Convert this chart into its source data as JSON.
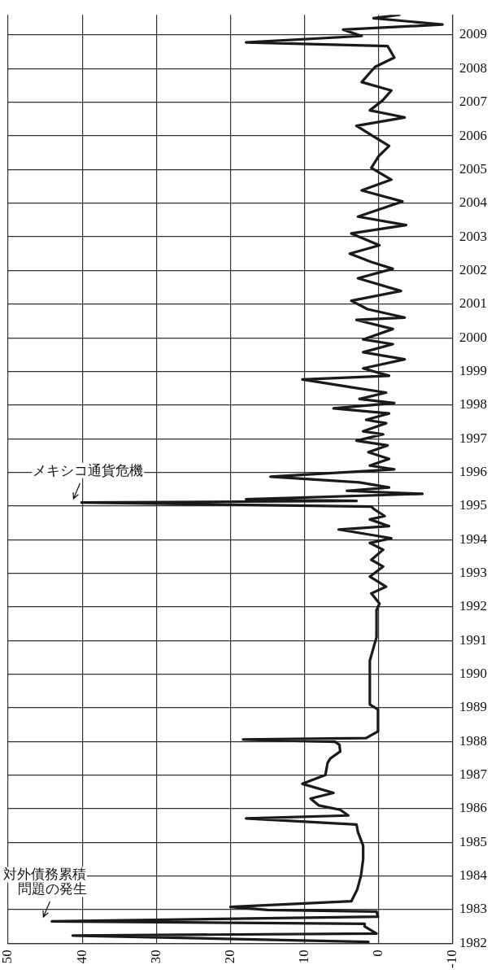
{
  "chart_data": {
    "type": "line",
    "orientation": "horizontal",
    "color": "#1a1a1a",
    "grid": true,
    "x": [
      1982.04,
      1982.23,
      1982.29,
      1982.5,
      1982.58,
      1982.65,
      1982.79,
      1982.94,
      1982.99,
      1983.08,
      1983.25,
      1983.6,
      1984.0,
      1984.5,
      1984.9,
      1985.3,
      1985.53,
      1985.71,
      1985.8,
      1985.97,
      1986.1,
      1986.3,
      1986.47,
      1986.74,
      1987.0,
      1987.36,
      1987.5,
      1987.7,
      1987.9,
      1987.99,
      1988.06,
      1988.1,
      1988.3,
      1988.95,
      1989.1,
      1990.4,
      1991.1,
      1991.9,
      1992.1,
      1992.4,
      1992.6,
      1992.9,
      1993.2,
      1993.4,
      1993.7,
      1993.9,
      1994.04,
      1994.3,
      1994.4,
      1994.6,
      1994.7,
      1994.9,
      1994.98,
      1995.1,
      1995.15,
      1995.2,
      1995.36,
      1995.45,
      1995.55,
      1995.7,
      1995.87,
      1996.09,
      1996.2,
      1996.4,
      1996.6,
      1996.8,
      1996.94,
      1997.13,
      1997.22,
      1997.46,
      1997.56,
      1997.75,
      1997.9,
      1998.06,
      1998.18,
      1998.37,
      1998.52,
      1998.76,
      1998.87,
      1999.09,
      1999.36,
      1999.57,
      1999.81,
      1999.95,
      2000.26,
      2000.53,
      2000.6,
      2000.85,
      2001.1,
      2001.39,
      2001.77,
      2002.05,
      2002.25,
      2002.5,
      2002.75,
      2003.1,
      2003.35,
      2003.6,
      2004.05,
      2004.38,
      2004.7,
      2005.05,
      2005.4,
      2005.7,
      2006.05,
      2006.3,
      2006.55,
      2006.76,
      2007.05,
      2007.35,
      2007.6,
      2008.05,
      2008.33,
      2008.67,
      2008.78,
      2008.97,
      2009.16,
      2009.31,
      2009.5,
      2009.6
    ],
    "values": [
      1.4,
      41.3,
      0.3,
      1.9,
      1.9,
      44.1,
      0.1,
      0.3,
      15,
      20.0,
      3.7,
      2.9,
      2.4,
      2.1,
      2.1,
      2.8,
      3.0,
      17.9,
      4.1,
      5.2,
      8.1,
      9.2,
      6.1,
      10.3,
      7.2,
      6.9,
      6.5,
      5.2,
      5.3,
      5.9,
      18.3,
      1.7,
      0.1,
      0.1,
      1.2,
      1.2,
      0.3,
      0.3,
      -0.1,
      1.0,
      -1.0,
      1.2,
      -0.6,
      1.0,
      -0.6,
      1.2,
      -1.7,
      5.4,
      -1.4,
      1.2,
      -0.8,
      0.6,
      1.0,
      40.1,
      3.0,
      17.9,
      -5.9,
      4.3,
      -1.4,
      2.6,
      14.6,
      -2.1,
      1.2,
      -1.4,
      1.4,
      -1.2,
      3.0,
      -0.6,
      2.1,
      -1.0,
      1.7,
      -1.4,
      6.1,
      -2.1,
      2.6,
      -1.0,
      3.4,
      10.3,
      -1.4,
      2.1,
      -3.5,
      2.1,
      -1.9,
      2.1,
      -1.9,
      3.0,
      -3.5,
      1.5,
      3.7,
      -3.0,
      2.8,
      -1.9,
      1.0,
      3.9,
      -0.1,
      3.7,
      -3.7,
      2.8,
      -3.2,
      2.3,
      -1.7,
      1.0,
      0.0,
      -1.4,
      1.2,
      3.0,
      -3.5,
      1.2,
      -0.5,
      -1.7,
      2.3,
      0.5,
      -2.1,
      -1.2,
      17.9,
      2.3,
      4.8,
      -8.6,
      0.7,
      -2.8
    ],
    "ylim": [
      1982,
      2009.6
    ],
    "yticks": [
      1982,
      1983,
      1984,
      1985,
      1986,
      1987,
      1988,
      1989,
      1990,
      1991,
      1992,
      1993,
      1994,
      1995,
      1996,
      1997,
      1998,
      1999,
      2000,
      2001,
      2002,
      2003,
      2004,
      2005,
      2006,
      2007,
      2008,
      2009
    ],
    "xlim": [
      50,
      -10
    ],
    "xticks": [
      50,
      40,
      30,
      20,
      10,
      0,
      -10
    ],
    "annotations": [
      {
        "text": "対外債務累積問題の発生",
        "x": 44.1,
        "y": 1982.65
      },
      {
        "text": "メキシコ通貨危機",
        "x": 40.1,
        "y": 1995.1
      }
    ]
  }
}
